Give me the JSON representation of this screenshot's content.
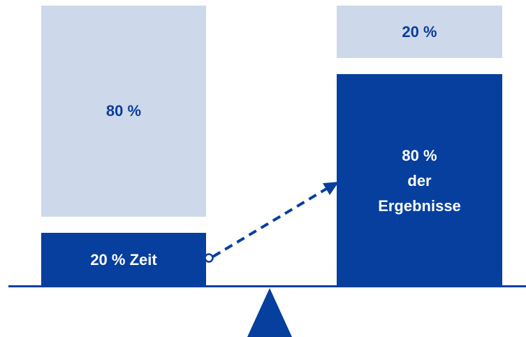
{
  "left": {
    "top_label": "80 %",
    "bottom_label": "20 % Zeit"
  },
  "right": {
    "top_label": "20 %",
    "bottom_lines": [
      "80 %",
      "der",
      "Ergebnisse"
    ]
  },
  "colors": {
    "dark_blue": "#063f9e",
    "light_blue": "#cdd9ea",
    "white": "#ffffff"
  },
  "icons": {
    "fulcrum": "triangle-fulcrum-icon",
    "connector": "dashed-arrow-icon"
  }
}
